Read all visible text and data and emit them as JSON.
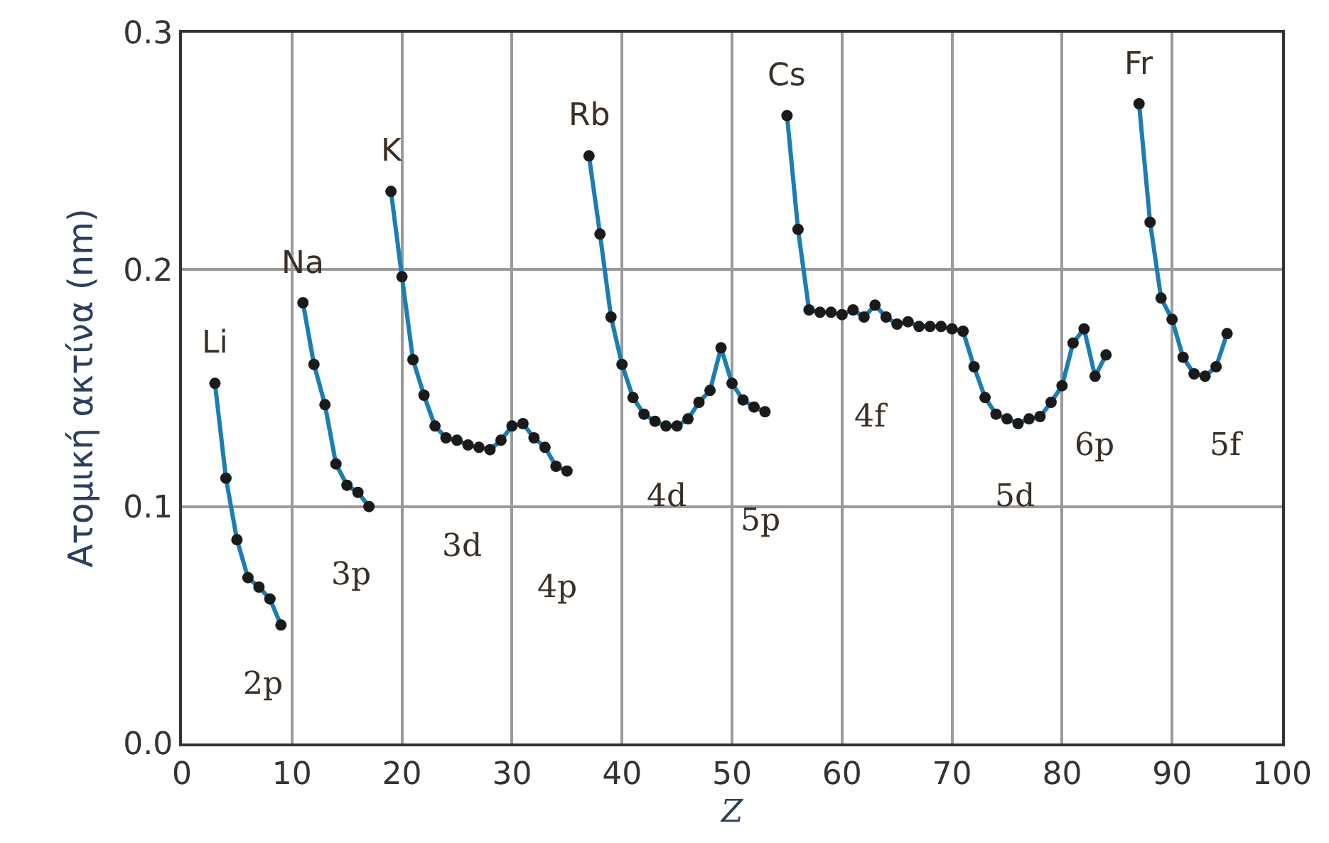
{
  "chart_data": {
    "type": "line",
    "xlabel": "Z",
    "ylabel": "Ατομική ακτίνα (nm)",
    "x": [
      3,
      4,
      5,
      6,
      7,
      8,
      9,
      10,
      11,
      12,
      13,
      14,
      15,
      16,
      17,
      18,
      19,
      20,
      21,
      22,
      23,
      24,
      25,
      26,
      27,
      28,
      29,
      30,
      31,
      32,
      33,
      34,
      35,
      36,
      37,
      38,
      39,
      40,
      41,
      42,
      43,
      44,
      45,
      46,
      47,
      48,
      49,
      50,
      51,
      52,
      53,
      54,
      55,
      56,
      57,
      58,
      59,
      60,
      61,
      62,
      63,
      64,
      65,
      66,
      67,
      68,
      69,
      70,
      71,
      72,
      73,
      74,
      75,
      76,
      77,
      78,
      79,
      80,
      81,
      82,
      83,
      84,
      86,
      87,
      88,
      89,
      90,
      91,
      92,
      93,
      94,
      95
    ],
    "series": [
      {
        "color": "#1a7db5",
        "values": [
          0.152,
          0.112,
          0.086,
          0.07,
          0.066,
          0.061,
          0.05,
          null,
          0.186,
          0.16,
          0.143,
          0.118,
          0.109,
          0.106,
          0.1,
          null,
          0.233,
          0.197,
          0.162,
          0.147,
          0.134,
          0.129,
          0.128,
          0.126,
          0.125,
          0.124,
          0.128,
          0.134,
          0.135,
          0.129,
          0.125,
          0.117,
          0.115,
          null,
          0.248,
          0.215,
          0.18,
          0.16,
          0.146,
          0.139,
          0.136,
          0.134,
          0.134,
          0.137,
          0.144,
          0.149,
          0.167,
          0.152,
          0.145,
          0.142,
          0.14,
          null,
          0.265,
          0.217,
          0.183,
          0.182,
          0.182,
          0.181,
          0.183,
          0.18,
          0.185,
          0.18,
          0.177,
          0.178,
          0.176,
          0.176,
          0.176,
          0.175,
          0.174,
          0.159,
          0.146,
          0.139,
          0.137,
          0.135,
          0.137,
          0.138,
          0.144,
          0.151,
          0.169,
          0.175,
          0.155,
          0.164,
          null,
          0.27,
          0.22,
          0.188,
          0.179,
          0.163,
          0.156,
          0.155,
          0.159,
          0.173
        ]
      }
    ],
    "annotations": [
      {
        "text": "Li",
        "x": 3,
        "y": 0.152
      },
      {
        "text": "Na",
        "x": 11,
        "y": 0.186
      },
      {
        "text": "K",
        "x": 19,
        "y": 0.233
      },
      {
        "text": "Rb",
        "x": 37,
        "y": 0.248
      },
      {
        "text": "Cs",
        "x": 55,
        "y": 0.265
      },
      {
        "text": "Fr",
        "x": 87,
        "y": 0.27
      },
      "2p",
      "3p",
      "3d",
      "4p",
      "4d",
      "5p",
      "4f",
      "5d",
      "6p",
      "5f"
    ],
    "xlim": [
      0,
      100
    ],
    "xticks": [
      0,
      10,
      20,
      30,
      40,
      50,
      60,
      70,
      80,
      90,
      100
    ],
    "ylim": [
      0,
      0.3
    ],
    "yticks": [
      {
        "value": 0,
        "label": "0.0"
      },
      0.1,
      0.2,
      0.3
    ],
    "grid": true,
    "marker": "circle",
    "line_style": "solid"
  }
}
